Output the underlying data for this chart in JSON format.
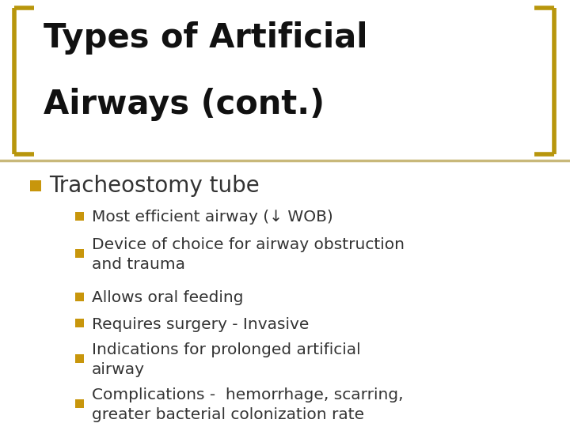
{
  "title_line1": "Types of Artificial",
  "title_line2": "Airways (cont.)",
  "background_color": "#FFFFFF",
  "title_color": "#111111",
  "text_color": "#333333",
  "divider_color": "#C8B87A",
  "bracket_color": "#B8960C",
  "bullet1_color": "#C8960C",
  "bullet2_color": "#C8960C",
  "main_bullet": "Tracheostomy tube",
  "sub_bullets": [
    "Most efficient airway (↓ WOB)",
    "Device of choice for airway obstruction\nand trauma",
    "Allows oral feeding",
    "Requires surgery - Invasive",
    "Indications for prolonged artificial\nairway",
    "Complications -  hemorrhage, scarring,\ngreater bacterial colonization rate"
  ],
  "title_fontsize": 30,
  "main_bullet_fontsize": 20,
  "sub_bullet_fontsize": 14.5
}
